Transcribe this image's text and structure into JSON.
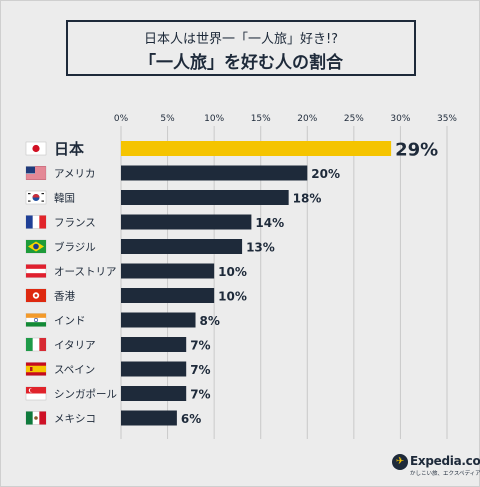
{
  "title": {
    "line1": "日本人は世界一「一人旅」好き!?",
    "line2": "「一人旅」を好む人の割合"
  },
  "logo": {
    "icon": "globe-icon",
    "text": "Expedia.co.jp",
    "sub": "かしこい旅、エクスペディア"
  },
  "colors": {
    "highlight": "#f5c400",
    "bar": "#1e2a3a",
    "text": "#1e2a3a"
  },
  "chart_data": {
    "type": "bar",
    "orientation": "horizontal",
    "x_ticks": [
      "0%",
      "5%",
      "10%",
      "15%",
      "20%",
      "25%",
      "30%",
      "35%"
    ],
    "xlim": [
      0,
      35
    ],
    "grid": true,
    "categories": [
      "日本",
      "アメリカ",
      "韓国",
      "フランス",
      "ブラジル",
      "オーストリア",
      "香港",
      "インド",
      "イタリア",
      "スペイン",
      "シンガポール",
      "メキシコ"
    ],
    "values": [
      29,
      20,
      18,
      14,
      13,
      10,
      10,
      8,
      7,
      7,
      7,
      6
    ],
    "value_labels": [
      "29%",
      "20%",
      "18%",
      "14%",
      "13%",
      "10%",
      "10%",
      "8%",
      "7%",
      "7%",
      "7%",
      "6%"
    ],
    "flags": [
      "japan-flag-icon",
      "usa-flag-icon",
      "korea-flag-icon",
      "france-flag-icon",
      "brazil-flag-icon",
      "austria-flag-icon",
      "hongkong-flag-icon",
      "india-flag-icon",
      "italy-flag-icon",
      "spain-flag-icon",
      "singapore-flag-icon",
      "mexico-flag-icon"
    ],
    "highlight_index": 0
  }
}
